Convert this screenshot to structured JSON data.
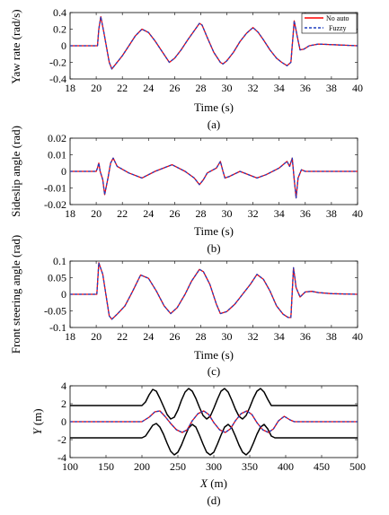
{
  "chart_data": [
    {
      "type": "line",
      "ylabel": "Yaw rate (rad/s)",
      "xlabel": "Time (s)",
      "caption": "(a)",
      "xlim": [
        18,
        40
      ],
      "ylim": [
        -0.4,
        0.4
      ],
      "xticks": [
        "18",
        "20",
        "22",
        "24",
        "26",
        "28",
        "30",
        "32",
        "34",
        "36",
        "38",
        "40"
      ],
      "yticks": [
        "-0.4",
        "-0.2",
        "0",
        "0.2",
        "0.4"
      ],
      "legend": {
        "position": "top-right",
        "entries": [
          "No auto",
          "Fuzzy"
        ]
      },
      "series": [
        {
          "name": "No auto",
          "color": "#ff0000",
          "style": "solid",
          "x": [
            18,
            20.1,
            20.2,
            20.35,
            20.6,
            21.0,
            21.2,
            21.5,
            22.0,
            22.5,
            23.0,
            23.5,
            24.0,
            24.5,
            25.0,
            25.6,
            26.0,
            26.5,
            27.0,
            27.5,
            27.9,
            28.1,
            28.5,
            29.0,
            29.5,
            29.7,
            30.0,
            30.5,
            31.0,
            31.5,
            32.0,
            32.4,
            32.8,
            33.3,
            33.8,
            34.2,
            34.6,
            34.9,
            35.15,
            35.4,
            35.6,
            35.9,
            36.3,
            37.0,
            40
          ],
          "y": [
            0,
            0,
            0.2,
            0.35,
            0.15,
            -0.2,
            -0.28,
            -0.22,
            -0.12,
            0.0,
            0.12,
            0.2,
            0.16,
            0.06,
            -0.06,
            -0.2,
            -0.15,
            -0.05,
            0.07,
            0.18,
            0.27,
            0.25,
            0.1,
            -0.08,
            -0.2,
            -0.22,
            -0.18,
            -0.08,
            0.05,
            0.15,
            0.22,
            0.16,
            0.07,
            -0.05,
            -0.15,
            -0.2,
            -0.24,
            -0.2,
            0.3,
            0.1,
            -0.05,
            -0.04,
            0.0,
            0.02,
            0.0
          ]
        },
        {
          "name": "Fuzzy",
          "color": "#1f3fbf",
          "style": "dashed",
          "x": [
            18,
            20.1,
            20.2,
            20.35,
            20.6,
            21.0,
            21.2,
            21.5,
            22.0,
            22.5,
            23.0,
            23.5,
            24.0,
            24.5,
            25.0,
            25.6,
            26.0,
            26.5,
            27.0,
            27.5,
            27.9,
            28.1,
            28.5,
            29.0,
            29.5,
            29.7,
            30.0,
            30.5,
            31.0,
            31.5,
            32.0,
            32.4,
            32.8,
            33.3,
            33.8,
            34.2,
            34.6,
            34.9,
            35.15,
            35.4,
            35.6,
            35.9,
            36.3,
            37.0,
            40
          ],
          "y": [
            0,
            0,
            0.2,
            0.35,
            0.15,
            -0.2,
            -0.28,
            -0.22,
            -0.12,
            0.0,
            0.12,
            0.2,
            0.16,
            0.06,
            -0.06,
            -0.2,
            -0.15,
            -0.05,
            0.07,
            0.18,
            0.27,
            0.25,
            0.1,
            -0.08,
            -0.2,
            -0.22,
            -0.18,
            -0.08,
            0.05,
            0.15,
            0.22,
            0.16,
            0.07,
            -0.05,
            -0.15,
            -0.2,
            -0.24,
            -0.2,
            0.3,
            0.1,
            -0.05,
            -0.04,
            0.0,
            0.02,
            0.0
          ]
        }
      ]
    },
    {
      "type": "line",
      "ylabel": "Sideslip angle (rad)",
      "xlabel": "Time (s)",
      "caption": "(b)",
      "xlim": [
        18,
        40
      ],
      "ylim": [
        -0.02,
        0.02
      ],
      "xticks": [
        "18",
        "20",
        "22",
        "24",
        "26",
        "28",
        "30",
        "32",
        "34",
        "36",
        "38",
        "40"
      ],
      "yticks": [
        "-0.02",
        "-0.01",
        "0",
        "0.01",
        "0.02"
      ],
      "series": [
        {
          "name": "No auto",
          "color": "#ff0000",
          "style": "solid",
          "x": [
            18,
            20.0,
            20.1,
            20.2,
            20.3,
            20.5,
            20.65,
            20.9,
            21.1,
            21.3,
            21.6,
            22.5,
            23.5,
            24.5,
            25.8,
            26.8,
            27.5,
            27.9,
            28.2,
            28.5,
            29.2,
            29.5,
            29.7,
            29.85,
            30.2,
            31.0,
            32.3,
            33.0,
            34.0,
            34.6,
            34.8,
            35.0,
            35.15,
            35.3,
            35.45,
            35.7,
            36.0,
            36.5,
            40
          ],
          "y": [
            0,
            0,
            0.002,
            0.005,
            0.0,
            -0.005,
            -0.014,
            -0.004,
            0.005,
            0.008,
            0.003,
            -0.001,
            -0.004,
            0.0,
            0.004,
            0.0,
            -0.004,
            -0.008,
            -0.005,
            -0.001,
            0.002,
            0.006,
            0.0,
            -0.004,
            -0.003,
            0.0,
            -0.004,
            -0.002,
            0.002,
            0.006,
            0.003,
            0.008,
            -0.005,
            -0.016,
            -0.004,
            0.001,
            0.0,
            0.0,
            0.0
          ]
        },
        {
          "name": "Fuzzy",
          "color": "#1f3fbf",
          "style": "dashed",
          "x": [
            18,
            20.0,
            20.1,
            20.2,
            20.3,
            20.5,
            20.65,
            20.9,
            21.1,
            21.3,
            21.6,
            22.5,
            23.5,
            24.5,
            25.8,
            26.8,
            27.5,
            27.9,
            28.2,
            28.5,
            29.2,
            29.5,
            29.7,
            29.85,
            30.2,
            31.0,
            32.3,
            33.0,
            34.0,
            34.6,
            34.8,
            35.0,
            35.15,
            35.3,
            35.45,
            35.7,
            36.0,
            36.5,
            40
          ],
          "y": [
            0,
            0,
            0.002,
            0.005,
            0.0,
            -0.005,
            -0.014,
            -0.004,
            0.005,
            0.008,
            0.003,
            -0.001,
            -0.004,
            0.0,
            0.004,
            0.0,
            -0.004,
            -0.008,
            -0.005,
            -0.001,
            0.002,
            0.006,
            0.0,
            -0.004,
            -0.003,
            0.0,
            -0.004,
            -0.002,
            0.002,
            0.006,
            0.003,
            0.008,
            -0.005,
            -0.016,
            -0.004,
            0.001,
            0.0,
            0.0,
            0.0
          ]
        }
      ]
    },
    {
      "type": "line",
      "ylabel": "Front steering angle (rad)",
      "xlabel": "Time (s)",
      "caption": "(c)",
      "xlim": [
        18,
        40
      ],
      "ylim": [
        -0.1,
        0.1
      ],
      "xticks": [
        "18",
        "20",
        "22",
        "24",
        "26",
        "28",
        "30",
        "32",
        "34",
        "36",
        "38",
        "40"
      ],
      "yticks": [
        "-0.1",
        "-0.05",
        "0",
        "0.05",
        "0.1"
      ],
      "series": [
        {
          "name": "No auto",
          "color": "#ff0000",
          "style": "solid",
          "x": [
            18,
            20.05,
            20.2,
            20.5,
            21.0,
            21.2,
            21.6,
            22.2,
            22.8,
            23.4,
            24.0,
            24.6,
            25.2,
            25.7,
            26.2,
            26.8,
            27.3,
            27.9,
            28.2,
            28.7,
            29.2,
            29.5,
            30.0,
            30.6,
            31.2,
            31.8,
            32.3,
            32.8,
            33.3,
            33.8,
            34.3,
            34.7,
            34.9,
            35.1,
            35.3,
            35.6,
            36.0,
            36.5,
            37.0,
            38.0,
            40
          ],
          "y": [
            0,
            0,
            0.095,
            0.06,
            -0.065,
            -0.075,
            -0.06,
            -0.035,
            0.01,
            0.058,
            0.048,
            0.01,
            -0.035,
            -0.058,
            -0.04,
            0.0,
            0.04,
            0.075,
            0.068,
            0.03,
            -0.03,
            -0.058,
            -0.052,
            -0.03,
            0.0,
            0.03,
            0.06,
            0.045,
            0.01,
            -0.035,
            -0.06,
            -0.07,
            -0.07,
            0.08,
            0.02,
            -0.008,
            0.007,
            0.009,
            0.005,
            0.002,
            0.0
          ]
        },
        {
          "name": "Fuzzy",
          "color": "#1f3fbf",
          "style": "dashed",
          "x": [
            18,
            20.05,
            20.2,
            20.5,
            21.0,
            21.2,
            21.6,
            22.2,
            22.8,
            23.4,
            24.0,
            24.6,
            25.2,
            25.7,
            26.2,
            26.8,
            27.3,
            27.9,
            28.2,
            28.7,
            29.2,
            29.5,
            30.0,
            30.6,
            31.2,
            31.8,
            32.3,
            32.8,
            33.3,
            33.8,
            34.3,
            34.7,
            34.9,
            35.1,
            35.3,
            35.6,
            36.0,
            36.5,
            37.0,
            38.0,
            40
          ],
          "y": [
            0,
            0,
            0.095,
            0.06,
            -0.065,
            -0.075,
            -0.06,
            -0.035,
            0.01,
            0.058,
            0.048,
            0.01,
            -0.035,
            -0.058,
            -0.04,
            0.0,
            0.04,
            0.075,
            0.068,
            0.03,
            -0.03,
            -0.058,
            -0.052,
            -0.03,
            0.0,
            0.03,
            0.06,
            0.045,
            0.01,
            -0.035,
            -0.06,
            -0.07,
            -0.07,
            0.08,
            0.02,
            -0.008,
            0.007,
            0.009,
            0.005,
            0.002,
            0.0
          ]
        }
      ]
    },
    {
      "type": "line",
      "ylabel_italic": "Y",
      "ylabel_unit": " (m)",
      "xlabel_italic": "X",
      "xlabel_unit": " (m)",
      "caption": "(d)",
      "xlim": [
        100,
        500
      ],
      "ylim": [
        -4,
        4
      ],
      "xticks": [
        "100",
        "150",
        "200",
        "250",
        "300",
        "350",
        "400",
        "450",
        "500"
      ],
      "yticks": [
        "-4",
        "-2",
        "0",
        "2",
        "4"
      ],
      "series": [
        {
          "name": "",
          "color": "#000000",
          "style": "solid",
          "x": [
            100,
            200,
            205,
            210,
            215,
            220,
            225,
            230,
            235,
            240,
            245,
            250,
            255,
            260,
            265,
            270,
            275,
            280,
            285,
            290,
            295,
            300,
            305,
            310,
            315,
            320,
            325,
            330,
            335,
            340,
            345,
            350,
            355,
            360,
            365,
            370,
            375,
            380,
            385,
            390,
            395,
            400,
            405,
            410,
            415,
            420,
            500
          ],
          "y": [
            1.8,
            1.8,
            2.2,
            3.0,
            3.6,
            3.4,
            2.6,
            1.7,
            0.8,
            0.3,
            0.5,
            1.3,
            2.4,
            3.3,
            3.7,
            3.4,
            2.6,
            1.6,
            0.7,
            0.3,
            0.6,
            1.5,
            2.5,
            3.4,
            3.7,
            3.3,
            2.4,
            1.4,
            0.6,
            0.3,
            0.7,
            1.6,
            2.6,
            3.4,
            3.7,
            3.3,
            2.5,
            1.8,
            1.8,
            1.8,
            1.8,
            1.8,
            1.8,
            1.8,
            1.8,
            1.8,
            1.8
          ]
        },
        {
          "name": "",
          "color": "#000000",
          "style": "solid",
          "x": [
            100,
            200,
            205,
            210,
            215,
            220,
            225,
            230,
            235,
            240,
            245,
            250,
            255,
            260,
            265,
            270,
            275,
            280,
            285,
            290,
            295,
            300,
            305,
            310,
            315,
            320,
            325,
            330,
            335,
            340,
            345,
            350,
            355,
            360,
            365,
            370,
            375,
            380,
            385,
            390,
            395,
            400,
            405,
            410,
            415,
            420,
            500
          ],
          "y": [
            -1.8,
            -1.8,
            -1.6,
            -1.0,
            -0.4,
            -0.2,
            -0.6,
            -1.4,
            -2.4,
            -3.3,
            -3.7,
            -3.4,
            -2.6,
            -1.6,
            -0.7,
            -0.3,
            -0.6,
            -1.5,
            -2.5,
            -3.4,
            -3.7,
            -3.4,
            -2.5,
            -1.5,
            -0.6,
            -0.3,
            -0.7,
            -1.6,
            -2.6,
            -3.4,
            -3.7,
            -3.3,
            -2.4,
            -1.4,
            -0.6,
            -0.3,
            -0.8,
            -1.6,
            -1.8,
            -1.8,
            -1.8,
            -1.8,
            -1.8,
            -1.8,
            -1.8,
            -1.8,
            -1.8
          ]
        },
        {
          "name": "No auto",
          "color": "#ff0000",
          "style": "solid",
          "x": [
            100,
            200,
            210,
            218,
            225,
            232,
            240,
            248,
            256,
            263,
            270,
            278,
            286,
            293,
            300,
            308,
            316,
            323,
            330,
            338,
            346,
            353,
            360,
            368,
            376,
            383,
            390,
            398,
            406,
            412,
            420,
            500
          ],
          "y": [
            0,
            0,
            0.5,
            1.1,
            1.2,
            0.6,
            -0.2,
            -0.9,
            -1.2,
            -0.9,
            0.1,
            0.9,
            1.2,
            0.8,
            -0.1,
            -0.9,
            -1.2,
            -0.8,
            0.1,
            0.9,
            1.2,
            0.8,
            -0.1,
            -0.9,
            -1.2,
            -0.8,
            0.1,
            0.6,
            0.2,
            0.0,
            0.0,
            0.0
          ]
        },
        {
          "name": "Fuzzy",
          "color": "#1f3fbf",
          "style": "dashed",
          "x": [
            100,
            200,
            210,
            218,
            225,
            232,
            240,
            248,
            256,
            263,
            270,
            278,
            286,
            293,
            300,
            308,
            316,
            323,
            330,
            338,
            346,
            353,
            360,
            368,
            376,
            383,
            390,
            398,
            406,
            412,
            420,
            500
          ],
          "y": [
            0,
            0,
            0.5,
            1.1,
            1.2,
            0.6,
            -0.2,
            -0.9,
            -1.2,
            -0.9,
            0.1,
            0.9,
            1.2,
            0.8,
            -0.1,
            -0.9,
            -1.2,
            -0.8,
            0.1,
            0.9,
            1.2,
            0.8,
            -0.1,
            -0.9,
            -1.2,
            -0.8,
            0.1,
            0.6,
            0.2,
            0.0,
            0.0,
            0.0
          ]
        }
      ]
    }
  ]
}
